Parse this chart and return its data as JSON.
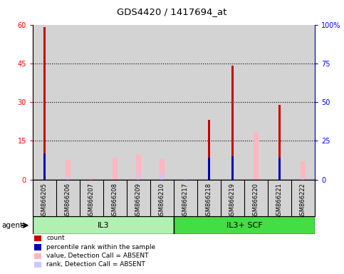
{
  "title": "GDS4420 / 1417694_at",
  "samples": [
    "GSM866205",
    "GSM866206",
    "GSM866207",
    "GSM866208",
    "GSM866209",
    "GSM866210",
    "GSM866217",
    "GSM866218",
    "GSM866219",
    "GSM866220",
    "GSM866221",
    "GSM866222"
  ],
  "group1_label": "IL3",
  "group2_label": "IL3+ SCF",
  "group1_color": "#b2f0b2",
  "group2_color": "#44dd44",
  "red_bars": [
    59,
    0,
    0,
    0,
    0,
    0,
    0,
    23,
    44,
    0,
    29,
    0
  ],
  "blue_bars": [
    10,
    0,
    0,
    0,
    0,
    0,
    0,
    8.5,
    9,
    0,
    8.5,
    0
  ],
  "pink_bars": [
    0,
    7.5,
    0.8,
    8.5,
    9.5,
    8,
    0,
    0,
    0,
    18.5,
    0,
    7
  ],
  "lavender_bars": [
    0,
    1,
    0.5,
    0,
    2.5,
    2,
    0.7,
    0,
    0,
    0,
    0,
    1
  ],
  "ylim_left": [
    0,
    60
  ],
  "ylim_right": [
    0,
    100
  ],
  "yticks_left": [
    0,
    15,
    30,
    45,
    60
  ],
  "yticks_right": [
    0,
    25,
    50,
    75,
    100
  ],
  "ytick_labels_right": [
    "0",
    "25",
    "50",
    "75",
    "100%"
  ],
  "grid_lines": [
    15,
    30,
    45
  ],
  "legend_items": [
    {
      "color": "#cc0000",
      "label": "count"
    },
    {
      "color": "#0000bb",
      "label": "percentile rank within the sample"
    },
    {
      "color": "#ffb6c1",
      "label": "value, Detection Call = ABSENT"
    },
    {
      "color": "#c8c8ff",
      "label": "rank, Detection Call = ABSENT"
    }
  ],
  "agent_label": "agent",
  "background_color": "#ffffff",
  "plot_bg_color": "#d3d3d3",
  "xtick_bg_color": "#d3d3d3"
}
